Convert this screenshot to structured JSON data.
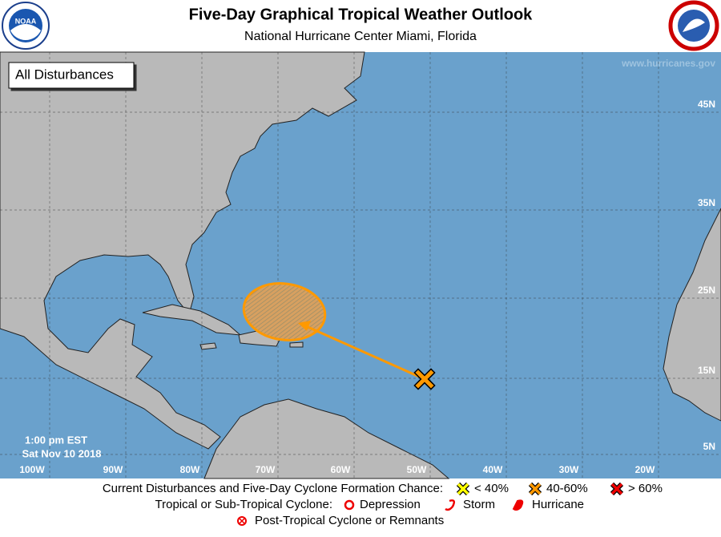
{
  "header": {
    "title": "Five-Day Graphical Tropical Weather Outlook",
    "subtitle": "National Hurricane Center  Miami, Florida",
    "website": "www.hurricanes.gov"
  },
  "logos": {
    "noaa": "NOAA"
  },
  "map": {
    "panel_label": "All Disturbances",
    "timestamp": [
      "1:00 pm EST",
      "Sat Nov 10 2018"
    ],
    "latitude_labels": [
      "45N",
      "35N",
      "25N",
      "15N",
      "5N"
    ],
    "longitude_labels": [
      "100W",
      "90W",
      "80W",
      "70W",
      "60W",
      "50W",
      "40W",
      "30W",
      "20W"
    ]
  },
  "legend": {
    "formation_heading": "Current Disturbances and Five-Day Cyclone Formation Chance:",
    "formation_chances": [
      "< 40%",
      "40-60%",
      "> 60%"
    ],
    "cyclone_heading": "Tropical or Sub-Tropical Cyclone:",
    "cyclone_types": [
      "Depression",
      "Storm",
      "Hurricane"
    ],
    "post_tropical": "Post-Tropical Cyclone or Remnants"
  }
}
